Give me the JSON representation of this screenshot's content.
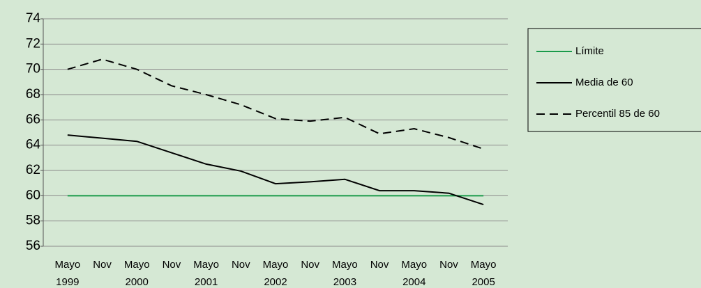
{
  "chart_data": {
    "type": "line",
    "categories": [
      [
        "Mayo",
        "1999"
      ],
      [
        "Nov"
      ],
      [
        "Mayo",
        "2000"
      ],
      [
        "Nov"
      ],
      [
        "Mayo",
        "2001"
      ],
      [
        "Nov"
      ],
      [
        "Mayo",
        "2002"
      ],
      [
        "Nov"
      ],
      [
        "Mayo",
        "2003"
      ],
      [
        "Nov"
      ],
      [
        "Mayo",
        "2004"
      ],
      [
        "Nov"
      ],
      [
        "Mayo",
        "2005"
      ]
    ],
    "series": [
      {
        "name": "Límite",
        "color": "#1a9a4a",
        "dash": false,
        "values": [
          60,
          60,
          60,
          60,
          60,
          60,
          60,
          60,
          60,
          60,
          60,
          60,
          60
        ]
      },
      {
        "name": "Media de 60",
        "color": "#000000",
        "dash": false,
        "values": [
          64.8,
          64.55,
          64.3,
          63.4,
          62.5,
          61.95,
          60.95,
          61.1,
          61.3,
          60.4,
          60.4,
          60.2,
          59.3
        ]
      },
      {
        "name": "Percentil 85 de 60",
        "color": "#000000",
        "dash": true,
        "values": [
          70.0,
          70.8,
          70.0,
          68.7,
          68.0,
          67.2,
          66.1,
          65.9,
          66.2,
          64.9,
          65.3,
          64.6,
          63.7
        ]
      }
    ],
    "ylim": [
      56,
      74
    ],
    "yticks": [
      56,
      58,
      60,
      62,
      64,
      66,
      68,
      70,
      72,
      74
    ],
    "grid": true,
    "legend": "right"
  }
}
